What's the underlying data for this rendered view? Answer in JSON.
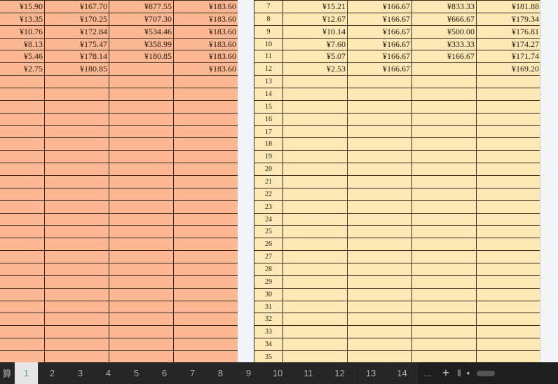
{
  "left_table": {
    "rows": [
      [
        "¥15.90",
        "¥167.70",
        "¥877.55",
        "¥183.60"
      ],
      [
        "¥13.35",
        "¥170.25",
        "¥707.30",
        "¥183.60"
      ],
      [
        "¥10.76",
        "¥172.84",
        "¥534.46",
        "¥183.60"
      ],
      [
        "¥8.13",
        "¥175.47",
        "¥358.99",
        "¥183.60"
      ],
      [
        "¥5.46",
        "¥178.14",
        "¥180.85",
        "¥183.60"
      ],
      [
        "¥2.75",
        "¥180.85",
        "",
        "¥183.60"
      ]
    ]
  },
  "right_table": {
    "row_numbers": [
      "7",
      "8",
      "9",
      "10",
      "11",
      "12",
      "13",
      "14",
      "15",
      "16",
      "17",
      "18",
      "19",
      "20",
      "21",
      "22",
      "23",
      "24",
      "25",
      "26",
      "27",
      "28",
      "29",
      "30",
      "31",
      "32",
      "33",
      "34",
      "35"
    ],
    "rows": [
      [
        "¥15.21",
        "¥166.67",
        "¥833.33",
        "¥181.88"
      ],
      [
        "¥12.67",
        "¥166.67",
        "¥666.67",
        "¥179.34"
      ],
      [
        "¥10.14",
        "¥166.67",
        "¥500.00",
        "¥176.81"
      ],
      [
        "¥7.60",
        "¥166.67",
        "¥333.33",
        "¥174.27"
      ],
      [
        "¥5.07",
        "¥166.67",
        "¥166.67",
        "¥171.74"
      ],
      [
        "¥2.53",
        "¥166.67",
        "",
        "¥169.20"
      ]
    ]
  },
  "sheet_tabs": {
    "partial": "算",
    "tabs": [
      "1",
      "2",
      "3",
      "4",
      "5",
      "6",
      "7",
      "8",
      "9",
      "10",
      "11",
      "12",
      "13",
      "14"
    ],
    "selected": "1",
    "more": "...",
    "add": "+"
  },
  "colors": {
    "left_fill": "#fbb893",
    "right_fill": "#fde9b5",
    "tabbar": "#1e1e1e"
  }
}
